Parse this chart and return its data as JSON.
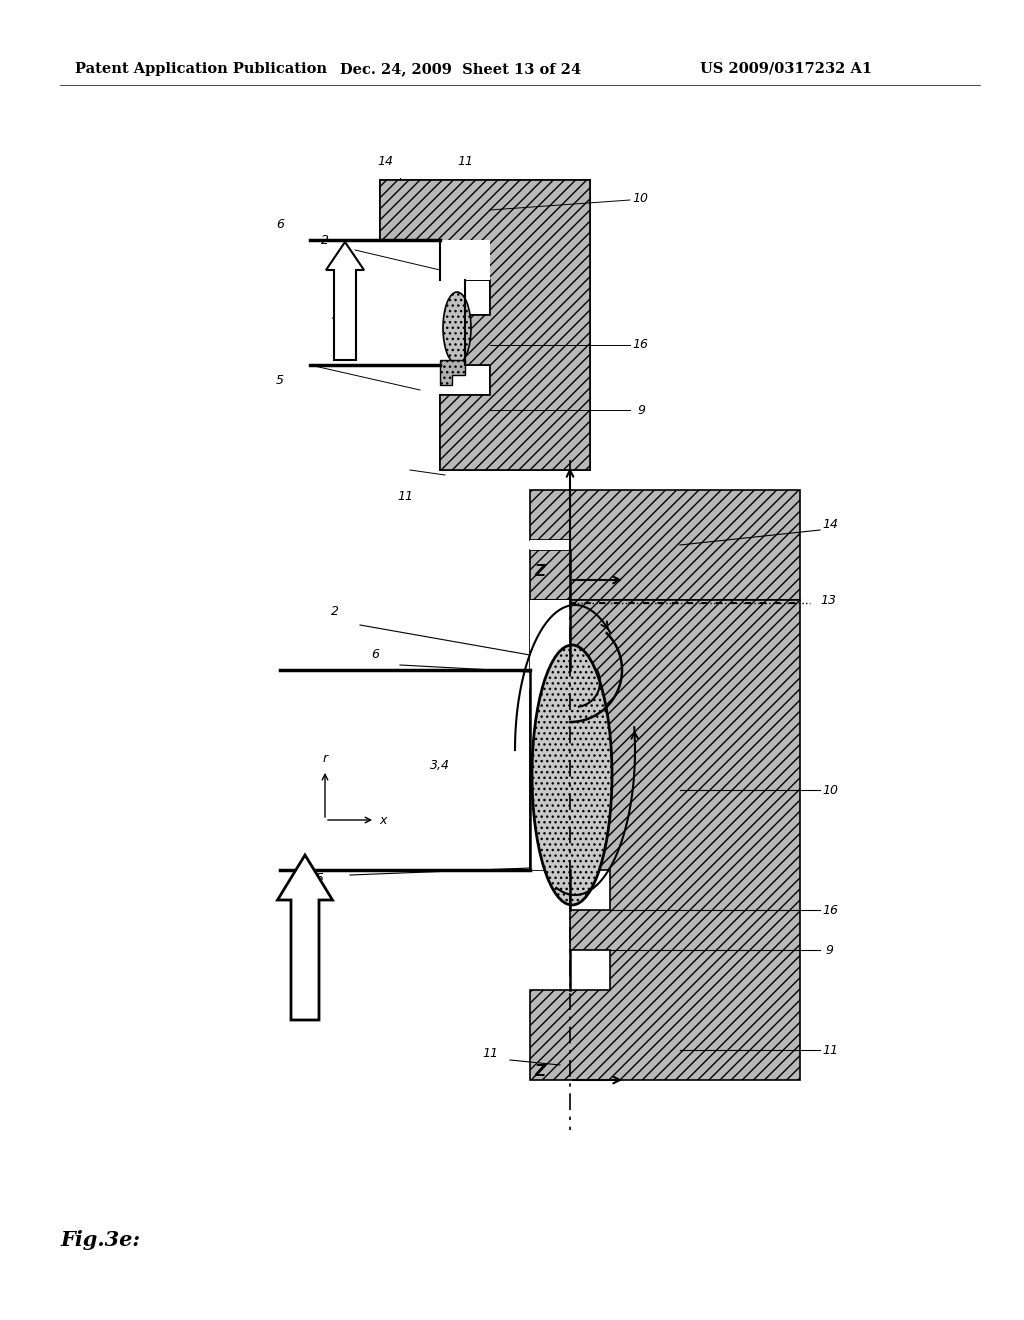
{
  "title_left": "Patent Application Publication",
  "title_mid": "Dec. 24, 2009  Sheet 13 of 24",
  "title_right": "US 2009/0317232 A1",
  "fig_label": "Fig.3e:",
  "background_color": "#ffffff",
  "hatch_color": "#aaaaaa",
  "header_fontsize": 10.5,
  "label_fontsize": 9
}
